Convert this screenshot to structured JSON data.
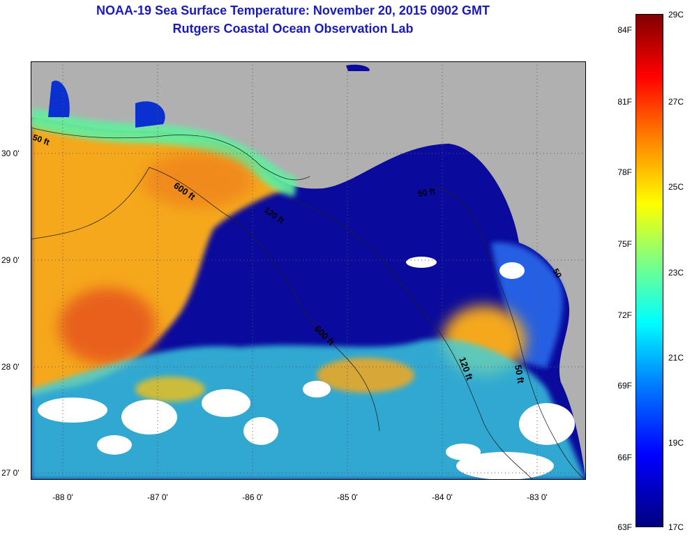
{
  "title_line1": "NOAA-19 Sea Surface Temperature:  November 20, 2015 0902 GMT",
  "title_line2": "Rutgers Coastal Ocean Observation Lab",
  "lat_labels": [
    "30 0'",
    "29 0'",
    "28 0'",
    "27 0'"
  ],
  "lon_labels": [
    "-88 0'",
    "-87 0'",
    "-86 0'",
    "-85 0'",
    "-84 0'",
    "-83 0'"
  ],
  "contours": {
    "c50a": "50 ft",
    "c600a": "600 ft",
    "c120a": "120 ft",
    "c50b": "50 ft",
    "c50c": "50",
    "c600b": "600 ft",
    "c120b": "120 ft",
    "c50d": "50 ft"
  },
  "colorbar": {
    "fahrenheit": [
      "84F",
      "81F",
      "78F",
      "75F",
      "72F",
      "69F",
      "66F",
      "63F"
    ],
    "celsius": [
      "29C",
      "27C",
      "25C",
      "23C",
      "21C",
      "19C",
      "17C"
    ]
  },
  "colors": {
    "land": "#b0b0b0",
    "cold": "#0a0a9c",
    "warm": "#f5a81a",
    "hot": "#e8601a",
    "cloud": "#ffffff",
    "title": "#1a1ab8"
  }
}
